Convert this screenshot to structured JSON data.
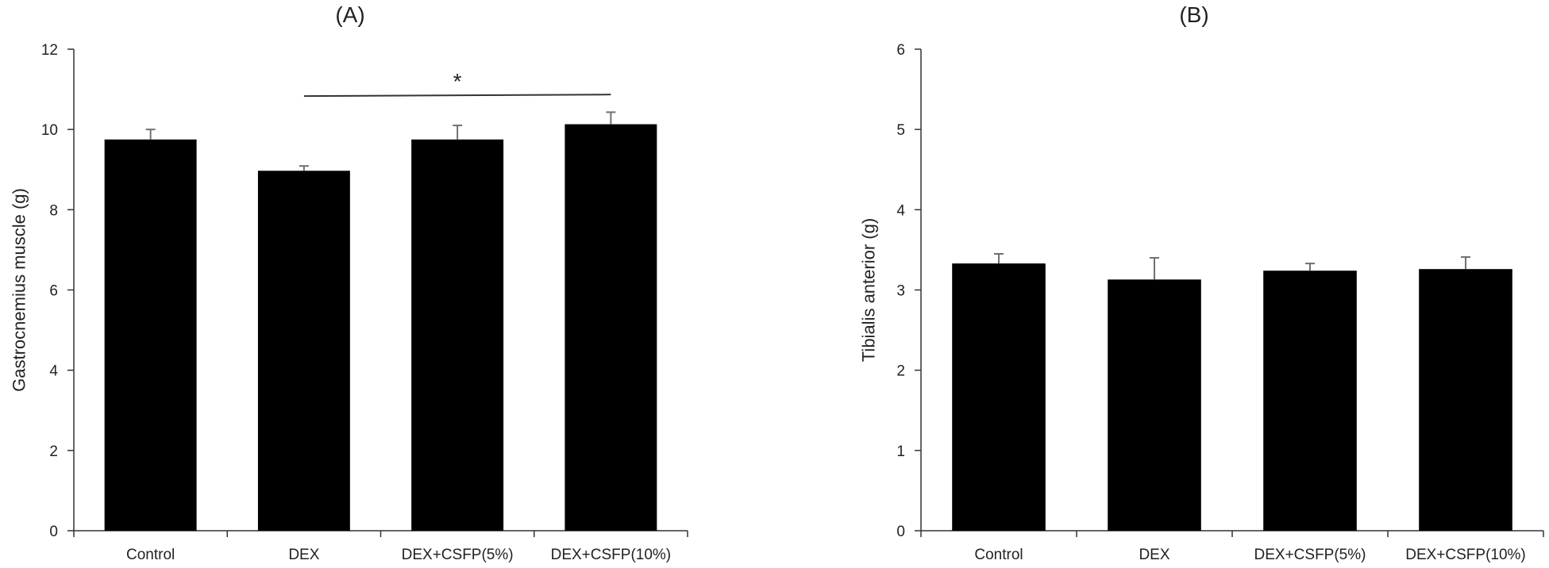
{
  "chart_data": [
    {
      "type": "bar",
      "panel_label": "(A)",
      "categories": [
        "Control",
        "DEX",
        "DEX+CSFP(5%)",
        "DEX+CSFP(10%)"
      ],
      "values": [
        9.75,
        8.97,
        9.75,
        10.13
      ],
      "errors": [
        0.25,
        0.12,
        0.35,
        0.3
      ],
      "ylabel": "Gastrocnemius muscle (g)",
      "xlabel": "",
      "ylim": [
        0,
        12
      ],
      "yticks": [
        0,
        2,
        4,
        6,
        8,
        10,
        12
      ],
      "bar_color": "#000000",
      "error_color": "#707070",
      "significance": {
        "from": "DEX",
        "to": "DEX+CSFP(10%)",
        "label": "*",
        "y": 10.85
      }
    },
    {
      "type": "bar",
      "panel_label": "(B)",
      "categories": [
        "Control",
        "DEX",
        "DEX+CSFP(5%)",
        "DEX+CSFP(10%)"
      ],
      "values": [
        3.33,
        3.13,
        3.24,
        3.26
      ],
      "errors": [
        0.12,
        0.27,
        0.09,
        0.15
      ],
      "ylabel": "Tibialis anterior (g)",
      "xlabel": "",
      "ylim": [
        0,
        6
      ],
      "yticks": [
        0,
        1,
        2,
        3,
        4,
        5,
        6
      ],
      "bar_color": "#000000",
      "error_color": "#707070"
    }
  ]
}
